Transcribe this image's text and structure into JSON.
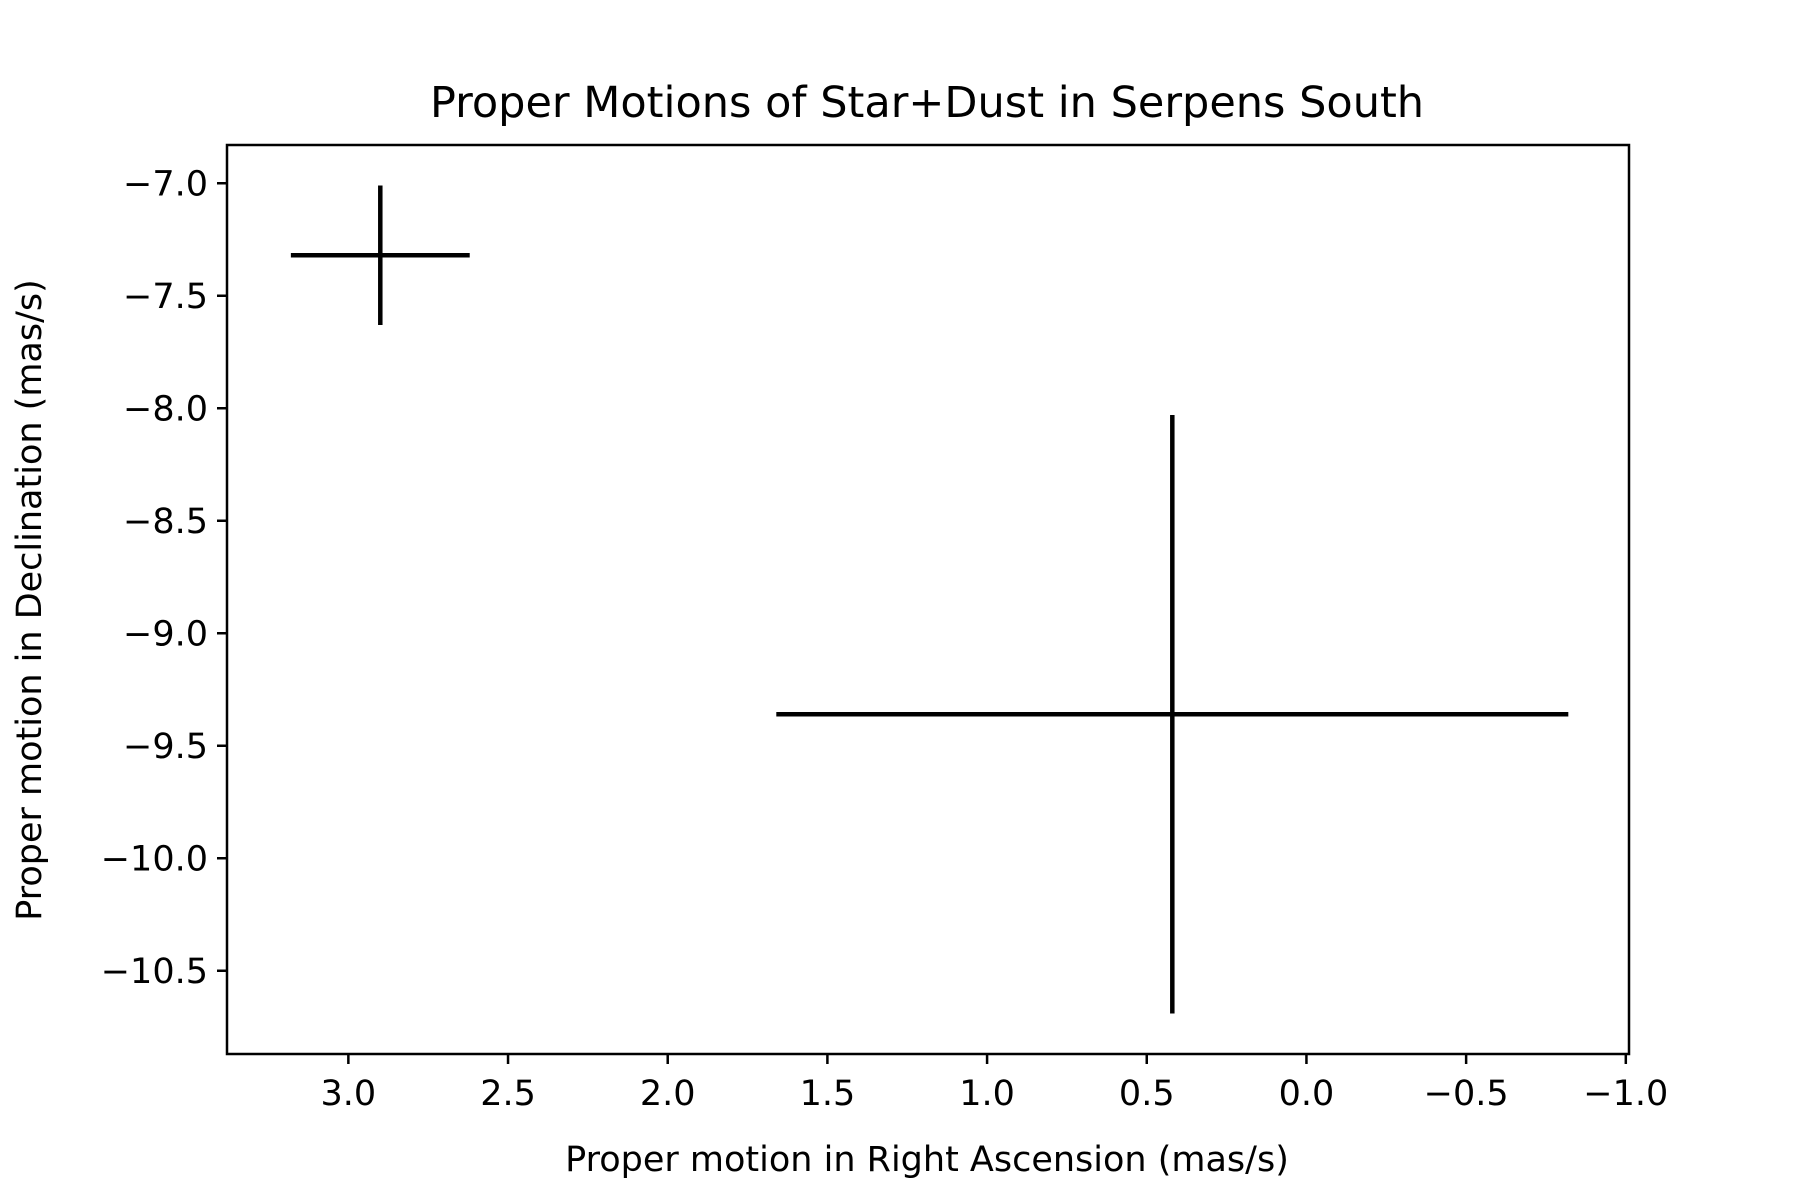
{
  "chart_data": {
    "type": "scatter",
    "title": "Proper Motions of Star+Dust in Serpens South",
    "xlabel": "Proper motion in Right Ascension (mas/s)",
    "ylabel": "Proper motion in Declination (mas/s)",
    "xlim": [
      3.38,
      -1.01
    ],
    "ylim": [
      -10.87,
      -6.83
    ],
    "x_inverted": true,
    "grid": false,
    "xticks": [
      3.0,
      2.5,
      2.0,
      1.5,
      1.0,
      0.5,
      0.0,
      -0.5,
      -1.0
    ],
    "xtick_labels": [
      "3.0",
      "2.5",
      "2.0",
      "1.5",
      "1.0",
      "0.5",
      "0.0",
      "−0.5",
      "−1.0"
    ],
    "yticks": [
      -7.0,
      -7.5,
      -8.0,
      -8.5,
      -9.0,
      -9.5,
      -10.0,
      -10.5
    ],
    "ytick_labels": [
      "−7.0",
      "−7.5",
      "−8.0",
      "−8.5",
      "−9.0",
      "−9.5",
      "−10.0",
      "−10.5"
    ],
    "series": [
      {
        "color": "#000000",
        "points": [
          {
            "x": 2.9,
            "y": -7.32,
            "xerr": 0.28,
            "yerr": 0.31
          },
          {
            "x": 0.42,
            "y": -9.36,
            "xerr": 1.24,
            "yerr": 1.33
          }
        ]
      }
    ]
  }
}
